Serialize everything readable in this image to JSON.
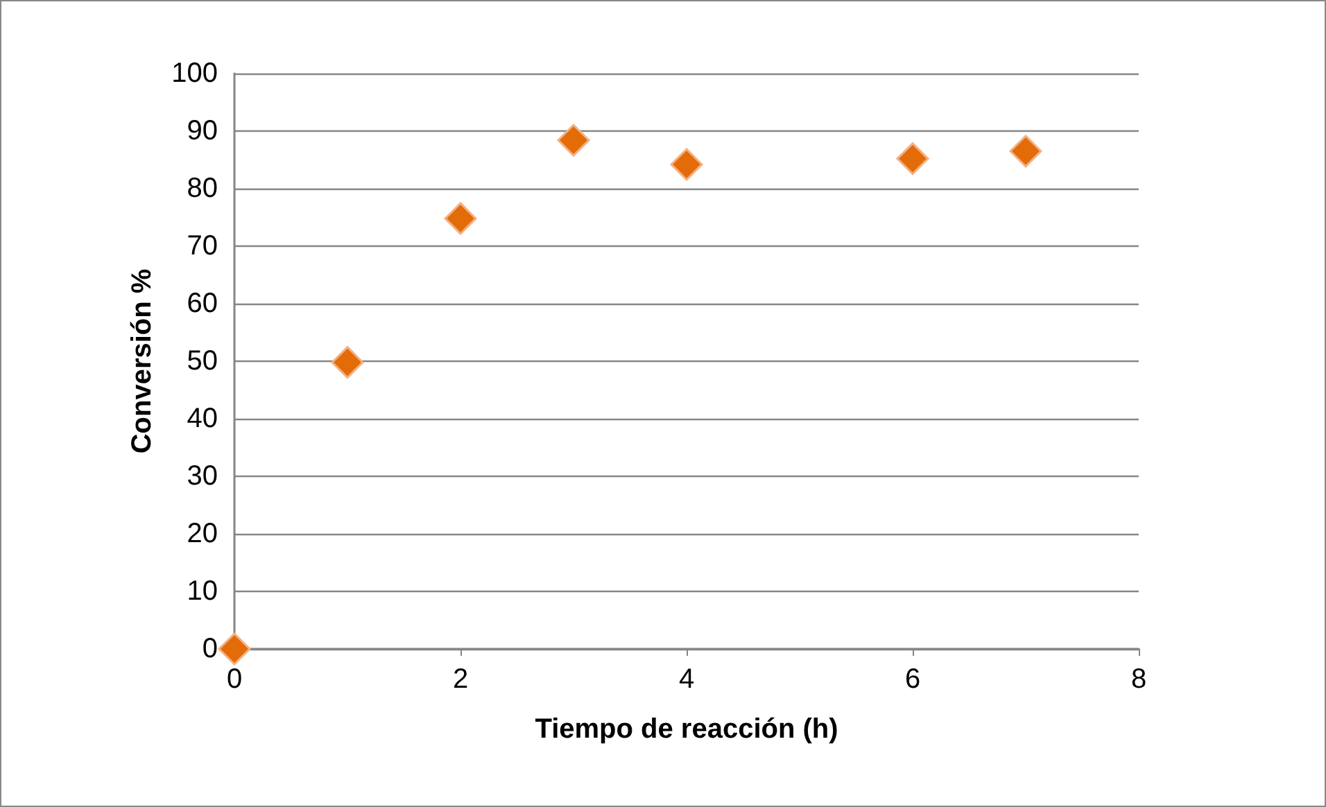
{
  "chart_data": {
    "type": "scatter",
    "xlabel": "Tiempo de reacción (h)",
    "ylabel": "Conversión %",
    "x": [
      0,
      1,
      2,
      3,
      4,
      6,
      7
    ],
    "values": [
      0,
      49.8,
      74.8,
      88.4,
      84.2,
      85.2,
      86.5
    ],
    "color": "#e36c09",
    "marker": "diamond",
    "xlim": [
      0,
      8
    ],
    "xticks": [
      0,
      2,
      4,
      6,
      8
    ],
    "ylim": [
      0,
      100
    ],
    "yticks": [
      0,
      10,
      20,
      30,
      40,
      50,
      60,
      70,
      80,
      90,
      100
    ],
    "grid": "y"
  }
}
